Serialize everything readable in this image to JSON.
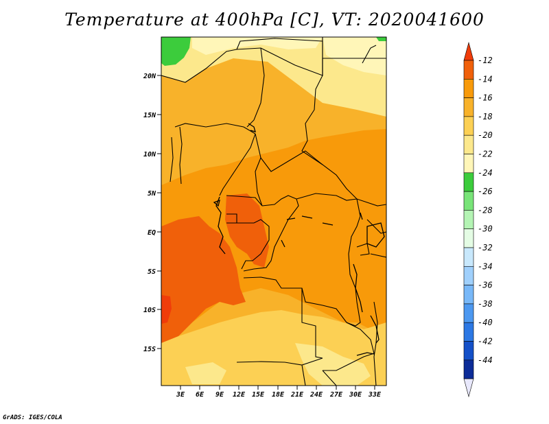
{
  "title": "Temperature at 400hPa [C], VT: 2020041600",
  "footer": "GrADS: IGES/COLA",
  "map": {
    "lat_ticks": [
      "20N",
      "15N",
      "10N",
      "5N",
      "EQ",
      "5S",
      "10S",
      "15S"
    ],
    "lon_ticks": [
      "3E",
      "6E",
      "9E",
      "12E",
      "15E",
      "18E",
      "21E",
      "24E",
      "27E",
      "30E",
      "33E"
    ]
  },
  "colorbar": {
    "labels": [
      "-12",
      "-14",
      "-16",
      "-18",
      "-20",
      "-22",
      "-24",
      "-26",
      "-28",
      "-30",
      "-32",
      "-34",
      "-36",
      "-38",
      "-40",
      "-42",
      "-44"
    ],
    "colors": [
      "#f0600a",
      "#f89a0a",
      "#f8b22a",
      "#fcd054",
      "#fce88c",
      "#fff6b8",
      "#3ccc3c",
      "#78e478",
      "#b4f4b4",
      "#e4fce4",
      "#c8e8fc",
      "#a0d0fc",
      "#78b8f8",
      "#4c98f0",
      "#2c78e4",
      "#1450c8",
      "#0c2c98"
    ],
    "top_color": "#f03c0a",
    "bottom_color": "#e8e8fc"
  }
}
